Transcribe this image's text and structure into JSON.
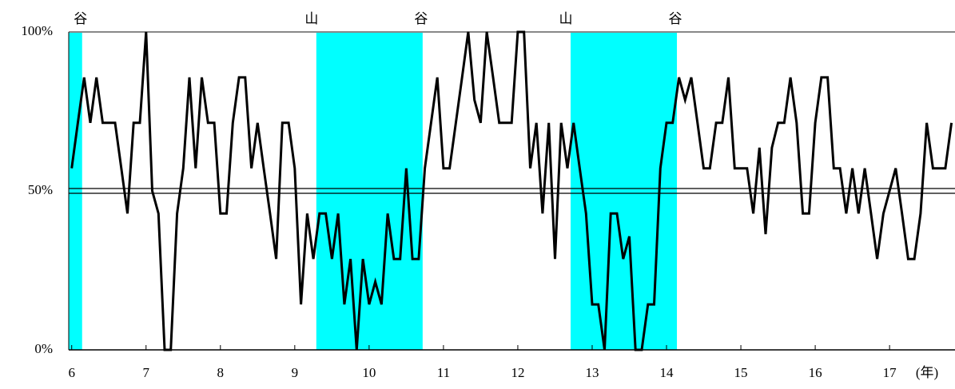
{
  "chart_data": {
    "type": "line",
    "x_label": "(年)",
    "x": [
      6,
      6.083,
      6.167,
      6.25,
      6.333,
      6.417,
      6.5,
      6.583,
      6.667,
      6.75,
      6.833,
      6.917,
      7,
      7.083,
      7.167,
      7.25,
      7.333,
      7.417,
      7.5,
      7.583,
      7.667,
      7.75,
      7.833,
      7.917,
      8,
      8.083,
      8.167,
      8.25,
      8.333,
      8.417,
      8.5,
      8.583,
      8.667,
      8.75,
      8.833,
      8.917,
      9,
      9.083,
      9.167,
      9.25,
      9.333,
      9.417,
      9.5,
      9.583,
      9.667,
      9.75,
      9.833,
      9.917,
      10,
      10.083,
      10.167,
      10.25,
      10.333,
      10.417,
      10.5,
      10.583,
      10.667,
      10.75,
      10.833,
      10.917,
      11,
      11.083,
      11.167,
      11.25,
      11.333,
      11.417,
      11.5,
      11.583,
      11.667,
      11.75,
      11.833,
      11.917,
      12,
      12.083,
      12.167,
      12.25,
      12.333,
      12.417,
      12.5,
      12.583,
      12.667,
      12.75,
      12.833,
      12.917,
      13,
      13.083,
      13.167,
      13.25,
      13.333,
      13.417,
      13.5,
      13.583,
      13.667,
      13.75,
      13.833,
      13.917,
      14,
      14.083,
      14.167,
      14.25,
      14.333,
      14.417,
      14.5,
      14.583,
      14.667,
      14.75,
      14.833,
      14.917,
      15,
      15.083,
      15.167,
      15.25,
      15.333,
      15.417,
      15.5,
      15.583,
      15.667,
      15.75,
      15.833,
      15.917,
      16,
      16.083,
      16.167,
      16.25,
      16.333,
      16.417,
      16.5,
      16.583,
      16.667,
      16.75,
      16.833,
      16.917,
      17,
      17.083,
      17.167,
      17.25,
      17.333,
      17.417,
      17.5,
      17.583,
      17.667,
      17.75,
      17.833
    ],
    "series": [
      {
        "color": "#000000",
        "values": [
          57.1,
          71.4,
          85.7,
          71.4,
          85.7,
          71.4,
          71.4,
          71.4,
          57.1,
          42.9,
          71.4,
          71.4,
          100,
          50,
          42.9,
          0,
          0,
          42.9,
          57.1,
          85.7,
          57.1,
          85.7,
          71.4,
          71.4,
          42.9,
          42.9,
          71.4,
          85.7,
          85.7,
          57.1,
          71.4,
          57.1,
          42.9,
          28.6,
          71.4,
          71.4,
          57.1,
          14.3,
          42.9,
          28.6,
          42.9,
          42.9,
          28.6,
          42.9,
          14.3,
          28.6,
          0,
          28.6,
          14.3,
          21.4,
          14.3,
          42.9,
          28.6,
          28.6,
          57.1,
          28.6,
          28.6,
          57.1,
          71.4,
          85.7,
          57.1,
          57.1,
          71.4,
          85.7,
          100,
          78.6,
          71.4,
          100,
          85.7,
          71.4,
          71.4,
          71.4,
          100,
          100,
          57.1,
          71.4,
          42.9,
          71.4,
          28.6,
          71.4,
          57.1,
          71.4,
          57.1,
          42.9,
          14.3,
          14.3,
          0,
          42.9,
          42.9,
          28.6,
          35.7,
          0,
          0,
          14.3,
          14.3,
          57.1,
          71.4,
          71.4,
          85.7,
          78.6,
          85.7,
          71.4,
          57.1,
          57.1,
          71.4,
          71.4,
          85.7,
          57.1,
          57.1,
          57.1,
          42.9,
          63.6,
          36.4,
          63.6,
          71.4,
          71.4,
          85.7,
          71.4,
          42.9,
          42.9,
          71.4,
          85.7,
          85.7,
          57.1,
          57.1,
          42.9,
          57.1,
          42.9,
          57.1,
          42.9,
          28.6,
          42.9,
          50,
          57.1,
          42.9,
          28.6,
          28.6,
          42.9,
          71.4,
          57.1,
          57.1,
          57.1,
          71.4
        ]
      }
    ],
    "shade_color": "#00ffff",
    "periods": [
      {
        "end": 6.14,
        "end_label": "谷"
      },
      {
        "start": 9.29,
        "end": 10.72,
        "start_label": "山",
        "end_label": "谷"
      },
      {
        "start": 12.71,
        "end": 14.14,
        "start_label": "山",
        "end_label": "谷"
      }
    ],
    "xlim": [
      5.96,
      17.88
    ],
    "xticks": [
      6,
      7,
      8,
      9,
      10,
      11,
      12,
      13,
      14,
      15,
      16,
      17
    ],
    "ylim": [
      0,
      100
    ],
    "yticks": [
      {
        "value": 0,
        "label": "0%"
      },
      {
        "value": 50,
        "label": "50%"
      },
      {
        "value": 100,
        "label": "100%"
      }
    ]
  }
}
